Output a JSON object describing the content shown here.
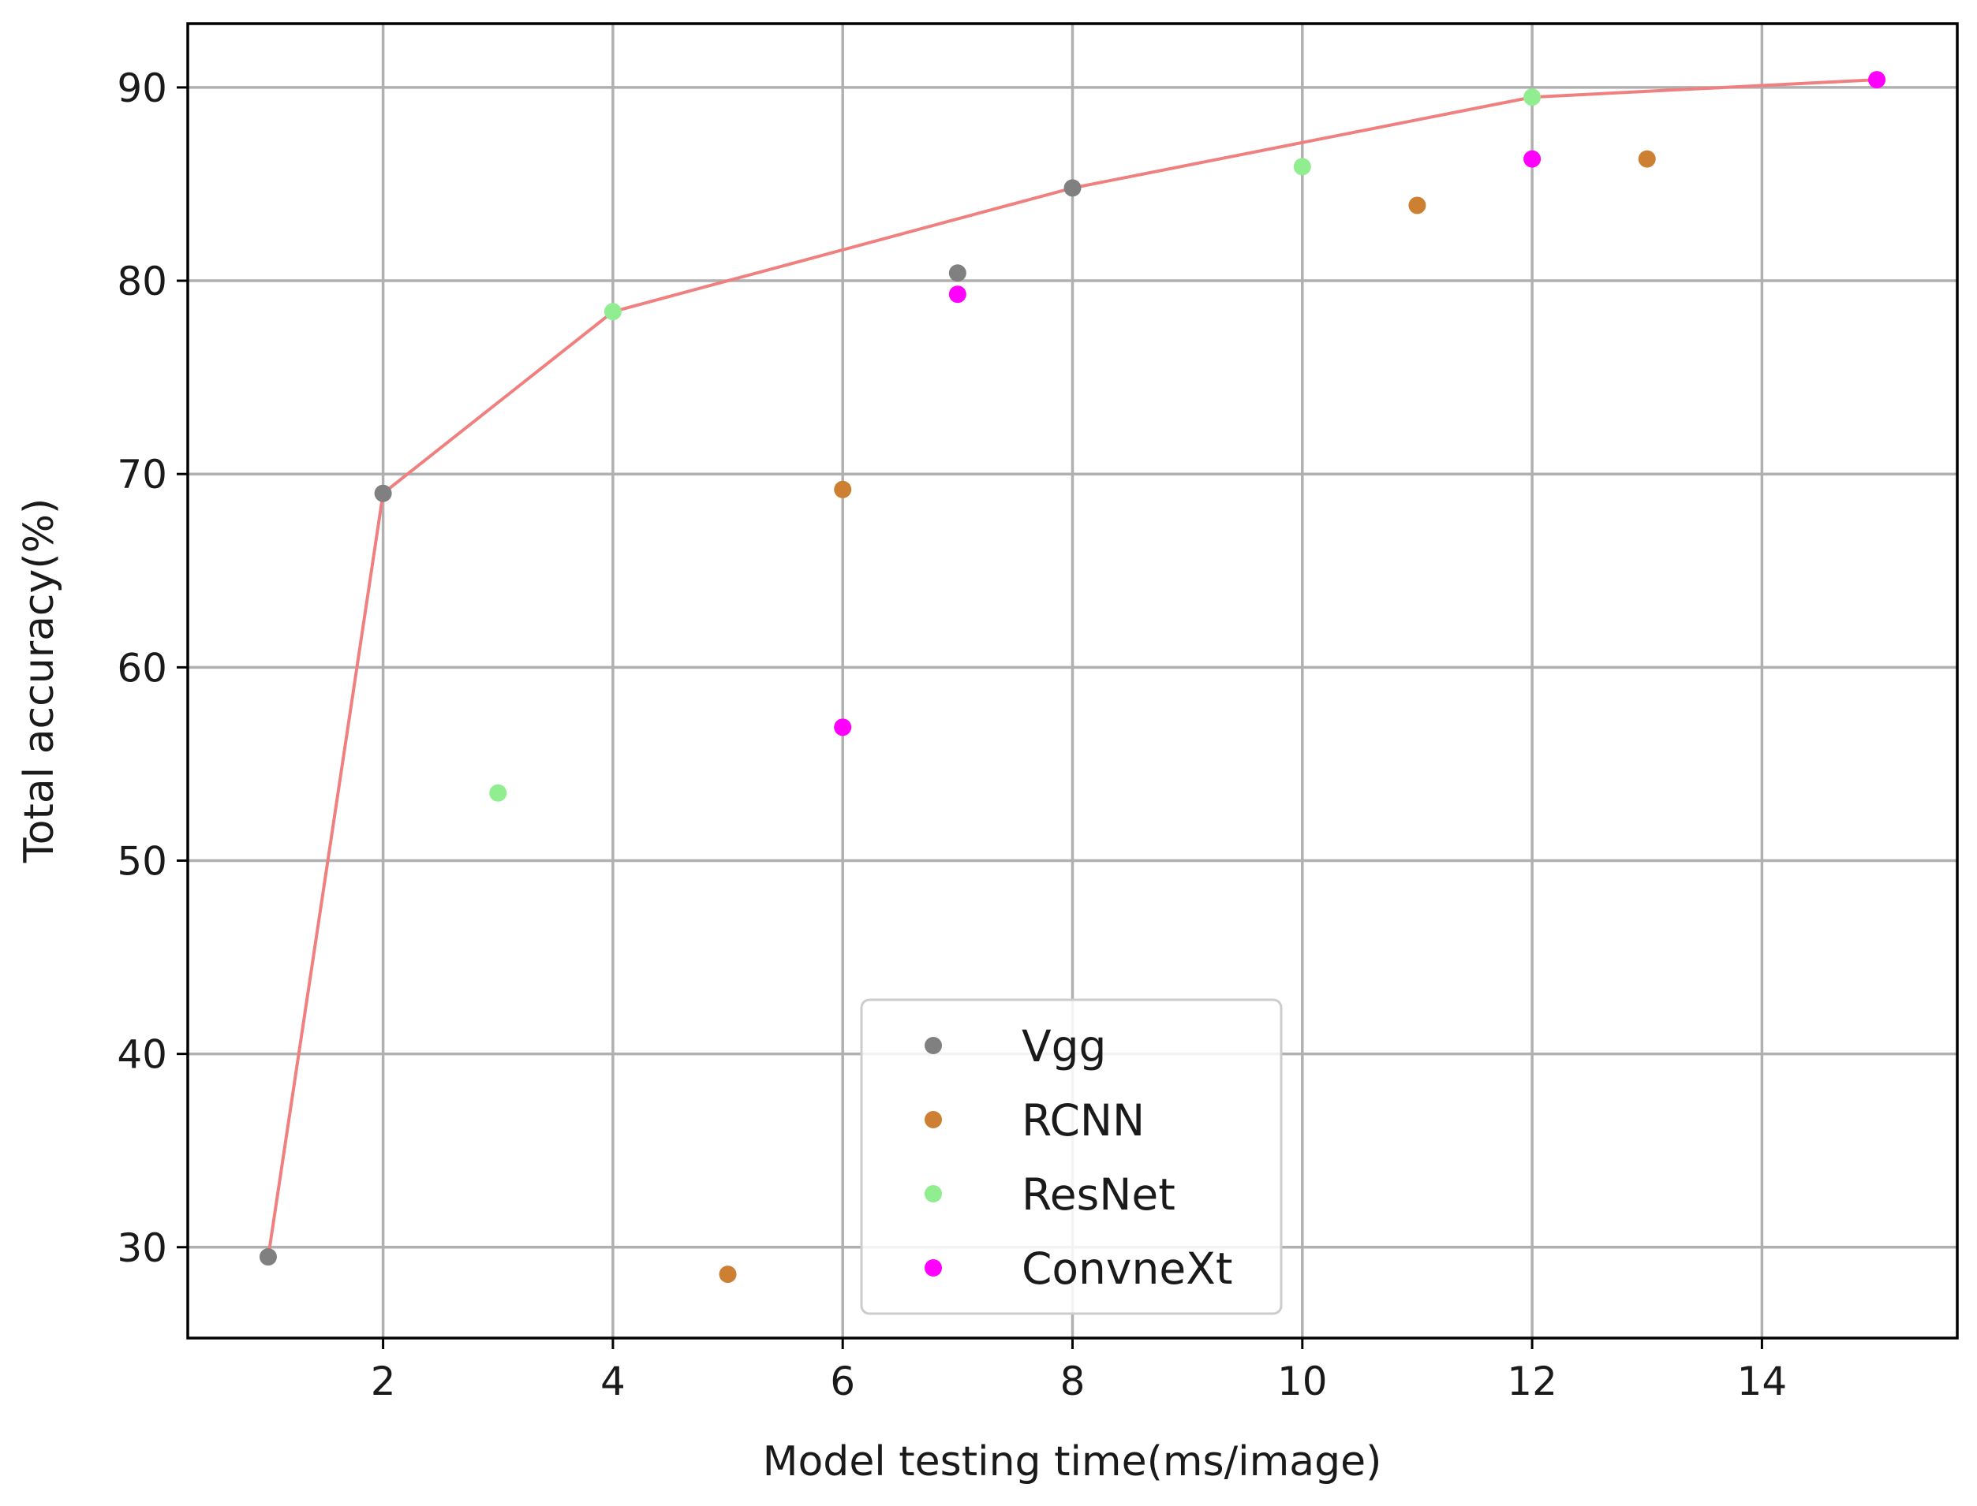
{
  "chart_data": {
    "type": "scatter",
    "xlabel": "Model testing time(ms/image)",
    "ylabel": "Total accuracy(%)",
    "xlim": [
      0.3,
      15.7
    ],
    "ylim": [
      25.3,
      93.3
    ],
    "x_ticks": [
      2,
      4,
      6,
      8,
      10,
      12,
      14
    ],
    "y_ticks": [
      30,
      40,
      50,
      60,
      70,
      80,
      90
    ],
    "grid": true,
    "legend_position": "lower center",
    "series": [
      {
        "name": "Vgg",
        "color": "#808080",
        "points": [
          [
            1,
            29.5
          ],
          [
            2,
            69.0
          ],
          [
            7,
            80.4
          ],
          [
            8,
            84.8
          ]
        ]
      },
      {
        "name": "RCNN",
        "color": "#cd7f32",
        "points": [
          [
            5,
            28.6
          ],
          [
            6,
            69.2
          ],
          [
            11,
            83.9
          ],
          [
            13,
            86.3
          ]
        ]
      },
      {
        "name": "ResNet",
        "color": "#90ee90",
        "points": [
          [
            3,
            53.5
          ],
          [
            4,
            78.4
          ],
          [
            10,
            85.9
          ],
          [
            12,
            89.5
          ]
        ]
      },
      {
        "name": "ConvneXt",
        "color": "#ff00ff",
        "points": [
          [
            6,
            56.9
          ],
          [
            7,
            79.3
          ],
          [
            12,
            86.3
          ],
          [
            15,
            90.4
          ]
        ]
      }
    ],
    "frontier": {
      "color": "#f08080",
      "points": [
        [
          1,
          29.5
        ],
        [
          2,
          69.0
        ],
        [
          4,
          78.4
        ],
        [
          8,
          84.8
        ],
        [
          12,
          89.5
        ],
        [
          15,
          90.4
        ]
      ]
    }
  }
}
